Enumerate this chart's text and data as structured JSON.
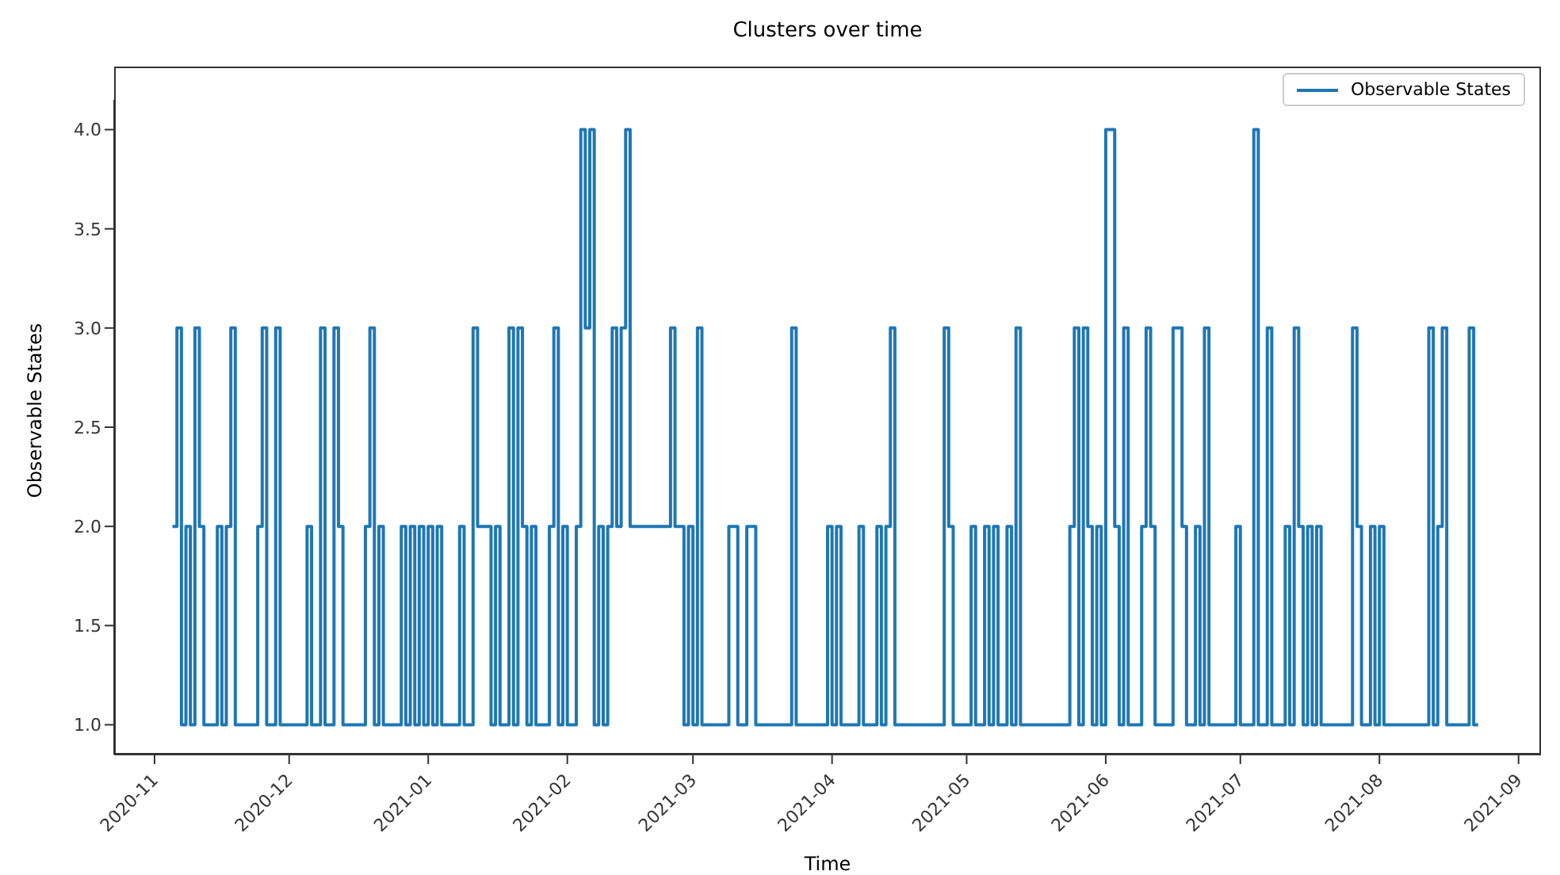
{
  "chart_data": {
    "type": "step",
    "title": "Clusters over time",
    "xlabel": "Time",
    "ylabel": "Observable States",
    "legend": "top right",
    "marker": "none",
    "line_style": "solid",
    "grid": false,
    "xlim": [
      "2020-10-23",
      "2021-09-06"
    ],
    "xticks": [
      "2020-11",
      "2020-12",
      "2021-01",
      "2021-02",
      "2021-03",
      "2021-04",
      "2021-05",
      "2021-06",
      "2021-07",
      "2021-08",
      "2021-09"
    ],
    "ylim": [
      0.85,
      4.15
    ],
    "yticks": [
      {
        "value": 1,
        "label": "1.0"
      },
      {
        "value": 1.5,
        "label": "1.5"
      },
      {
        "value": 2,
        "label": "2.0"
      },
      {
        "value": 2.5,
        "label": "2.5"
      },
      {
        "value": 3,
        "label": "3.0"
      },
      {
        "value": 3.5,
        "label": "3.5"
      },
      {
        "value": 4,
        "label": "4.0"
      }
    ],
    "series": [
      {
        "name": "Observable States",
        "color": "#1f77b4",
        "x": [
          "2020-11-05",
          "2020-11-06",
          "2020-11-07",
          "2020-11-08",
          "2020-11-09",
          "2020-11-10",
          "2020-11-11",
          "2020-11-12",
          "2020-11-15",
          "2020-11-16",
          "2020-11-17",
          "2020-11-18",
          "2020-11-19",
          "2020-11-24",
          "2020-11-25",
          "2020-11-26",
          "2020-11-28",
          "2020-11-29",
          "2020-12-05",
          "2020-12-06",
          "2020-12-08",
          "2020-12-09",
          "2020-12-11",
          "2020-12-12",
          "2020-12-13",
          "2020-12-18",
          "2020-12-19",
          "2020-12-20",
          "2020-12-21",
          "2020-12-22",
          "2020-12-26",
          "2020-12-27",
          "2020-12-28",
          "2020-12-29",
          "2020-12-30",
          "2020-12-31",
          "2021-01-01",
          "2021-01-02",
          "2021-01-03",
          "2021-01-04",
          "2021-01-08",
          "2021-01-09",
          "2021-01-11",
          "2021-01-12",
          "2021-01-15",
          "2021-01-16",
          "2021-01-17",
          "2021-01-19",
          "2021-01-20",
          "2021-01-21",
          "2021-01-22",
          "2021-01-23",
          "2021-01-24",
          "2021-01-25",
          "2021-01-28",
          "2021-01-29",
          "2021-01-30",
          "2021-01-31",
          "2021-02-01",
          "2021-02-03",
          "2021-02-04",
          "2021-02-05",
          "2021-02-06",
          "2021-02-07",
          "2021-02-08",
          "2021-02-09",
          "2021-02-10",
          "2021-02-11",
          "2021-02-12",
          "2021-02-13",
          "2021-02-14",
          "2021-02-15",
          "2021-02-24",
          "2021-02-25",
          "2021-02-27",
          "2021-02-28",
          "2021-03-01",
          "2021-03-02",
          "2021-03-03",
          "2021-03-09",
          "2021-03-11",
          "2021-03-13",
          "2021-03-15",
          "2021-03-23",
          "2021-03-24",
          "2021-03-31",
          "2021-04-01",
          "2021-04-02",
          "2021-04-03",
          "2021-04-07",
          "2021-04-08",
          "2021-04-11",
          "2021-04-12",
          "2021-04-13",
          "2021-04-14",
          "2021-04-15",
          "2021-04-26",
          "2021-04-27",
          "2021-04-28",
          "2021-05-02",
          "2021-05-03",
          "2021-05-05",
          "2021-05-06",
          "2021-05-07",
          "2021-05-08",
          "2021-05-10",
          "2021-05-11",
          "2021-05-12",
          "2021-05-13",
          "2021-05-24",
          "2021-05-25",
          "2021-05-26",
          "2021-05-27",
          "2021-05-28",
          "2021-05-29",
          "2021-05-30",
          "2021-05-31",
          "2021-06-01",
          "2021-06-03",
          "2021-06-04",
          "2021-06-05",
          "2021-06-06",
          "2021-06-09",
          "2021-06-10",
          "2021-06-11",
          "2021-06-12",
          "2021-06-16",
          "2021-06-18",
          "2021-06-19",
          "2021-06-21",
          "2021-06-22",
          "2021-06-23",
          "2021-06-24",
          "2021-06-30",
          "2021-07-01",
          "2021-07-04",
          "2021-07-05",
          "2021-07-07",
          "2021-07-08",
          "2021-07-11",
          "2021-07-12",
          "2021-07-13",
          "2021-07-14",
          "2021-07-15",
          "2021-07-16",
          "2021-07-17",
          "2021-07-18",
          "2021-07-19",
          "2021-07-26",
          "2021-07-27",
          "2021-07-28",
          "2021-07-30",
          "2021-07-31",
          "2021-08-01",
          "2021-08-02",
          "2021-08-12",
          "2021-08-13",
          "2021-08-14",
          "2021-08-15",
          "2021-08-16",
          "2021-08-21",
          "2021-08-22",
          "2021-08-23"
        ],
        "values": [
          2,
          3,
          1,
          2,
          1,
          3,
          2,
          1,
          2,
          1,
          2,
          3,
          1,
          2,
          3,
          1,
          3,
          1,
          2,
          1,
          3,
          1,
          3,
          2,
          1,
          2,
          3,
          1,
          2,
          1,
          2,
          1,
          2,
          1,
          2,
          1,
          2,
          1,
          2,
          1,
          2,
          1,
          3,
          2,
          1,
          2,
          1,
          3,
          1,
          3,
          2,
          1,
          2,
          1,
          2,
          3,
          1,
          2,
          1,
          2,
          4,
          3,
          4,
          1,
          2,
          1,
          2,
          3,
          2,
          3,
          4,
          2,
          3,
          2,
          1,
          2,
          1,
          3,
          1,
          2,
          1,
          2,
          1,
          3,
          1,
          2,
          1,
          2,
          1,
          2,
          1,
          2,
          1,
          2,
          3,
          1,
          3,
          2,
          1,
          2,
          1,
          2,
          1,
          2,
          1,
          2,
          1,
          3,
          1,
          2,
          3,
          1,
          3,
          2,
          1,
          2,
          1,
          4,
          2,
          1,
          3,
          1,
          2,
          3,
          2,
          1,
          3,
          2,
          1,
          2,
          1,
          3,
          1,
          2,
          1,
          4,
          1,
          3,
          1,
          2,
          1,
          3,
          2,
          1,
          2,
          1,
          2,
          1,
          3,
          2,
          1,
          2,
          1,
          2,
          1,
          3,
          1,
          2,
          3,
          1,
          3,
          1,
          1
        ]
      }
    ]
  }
}
